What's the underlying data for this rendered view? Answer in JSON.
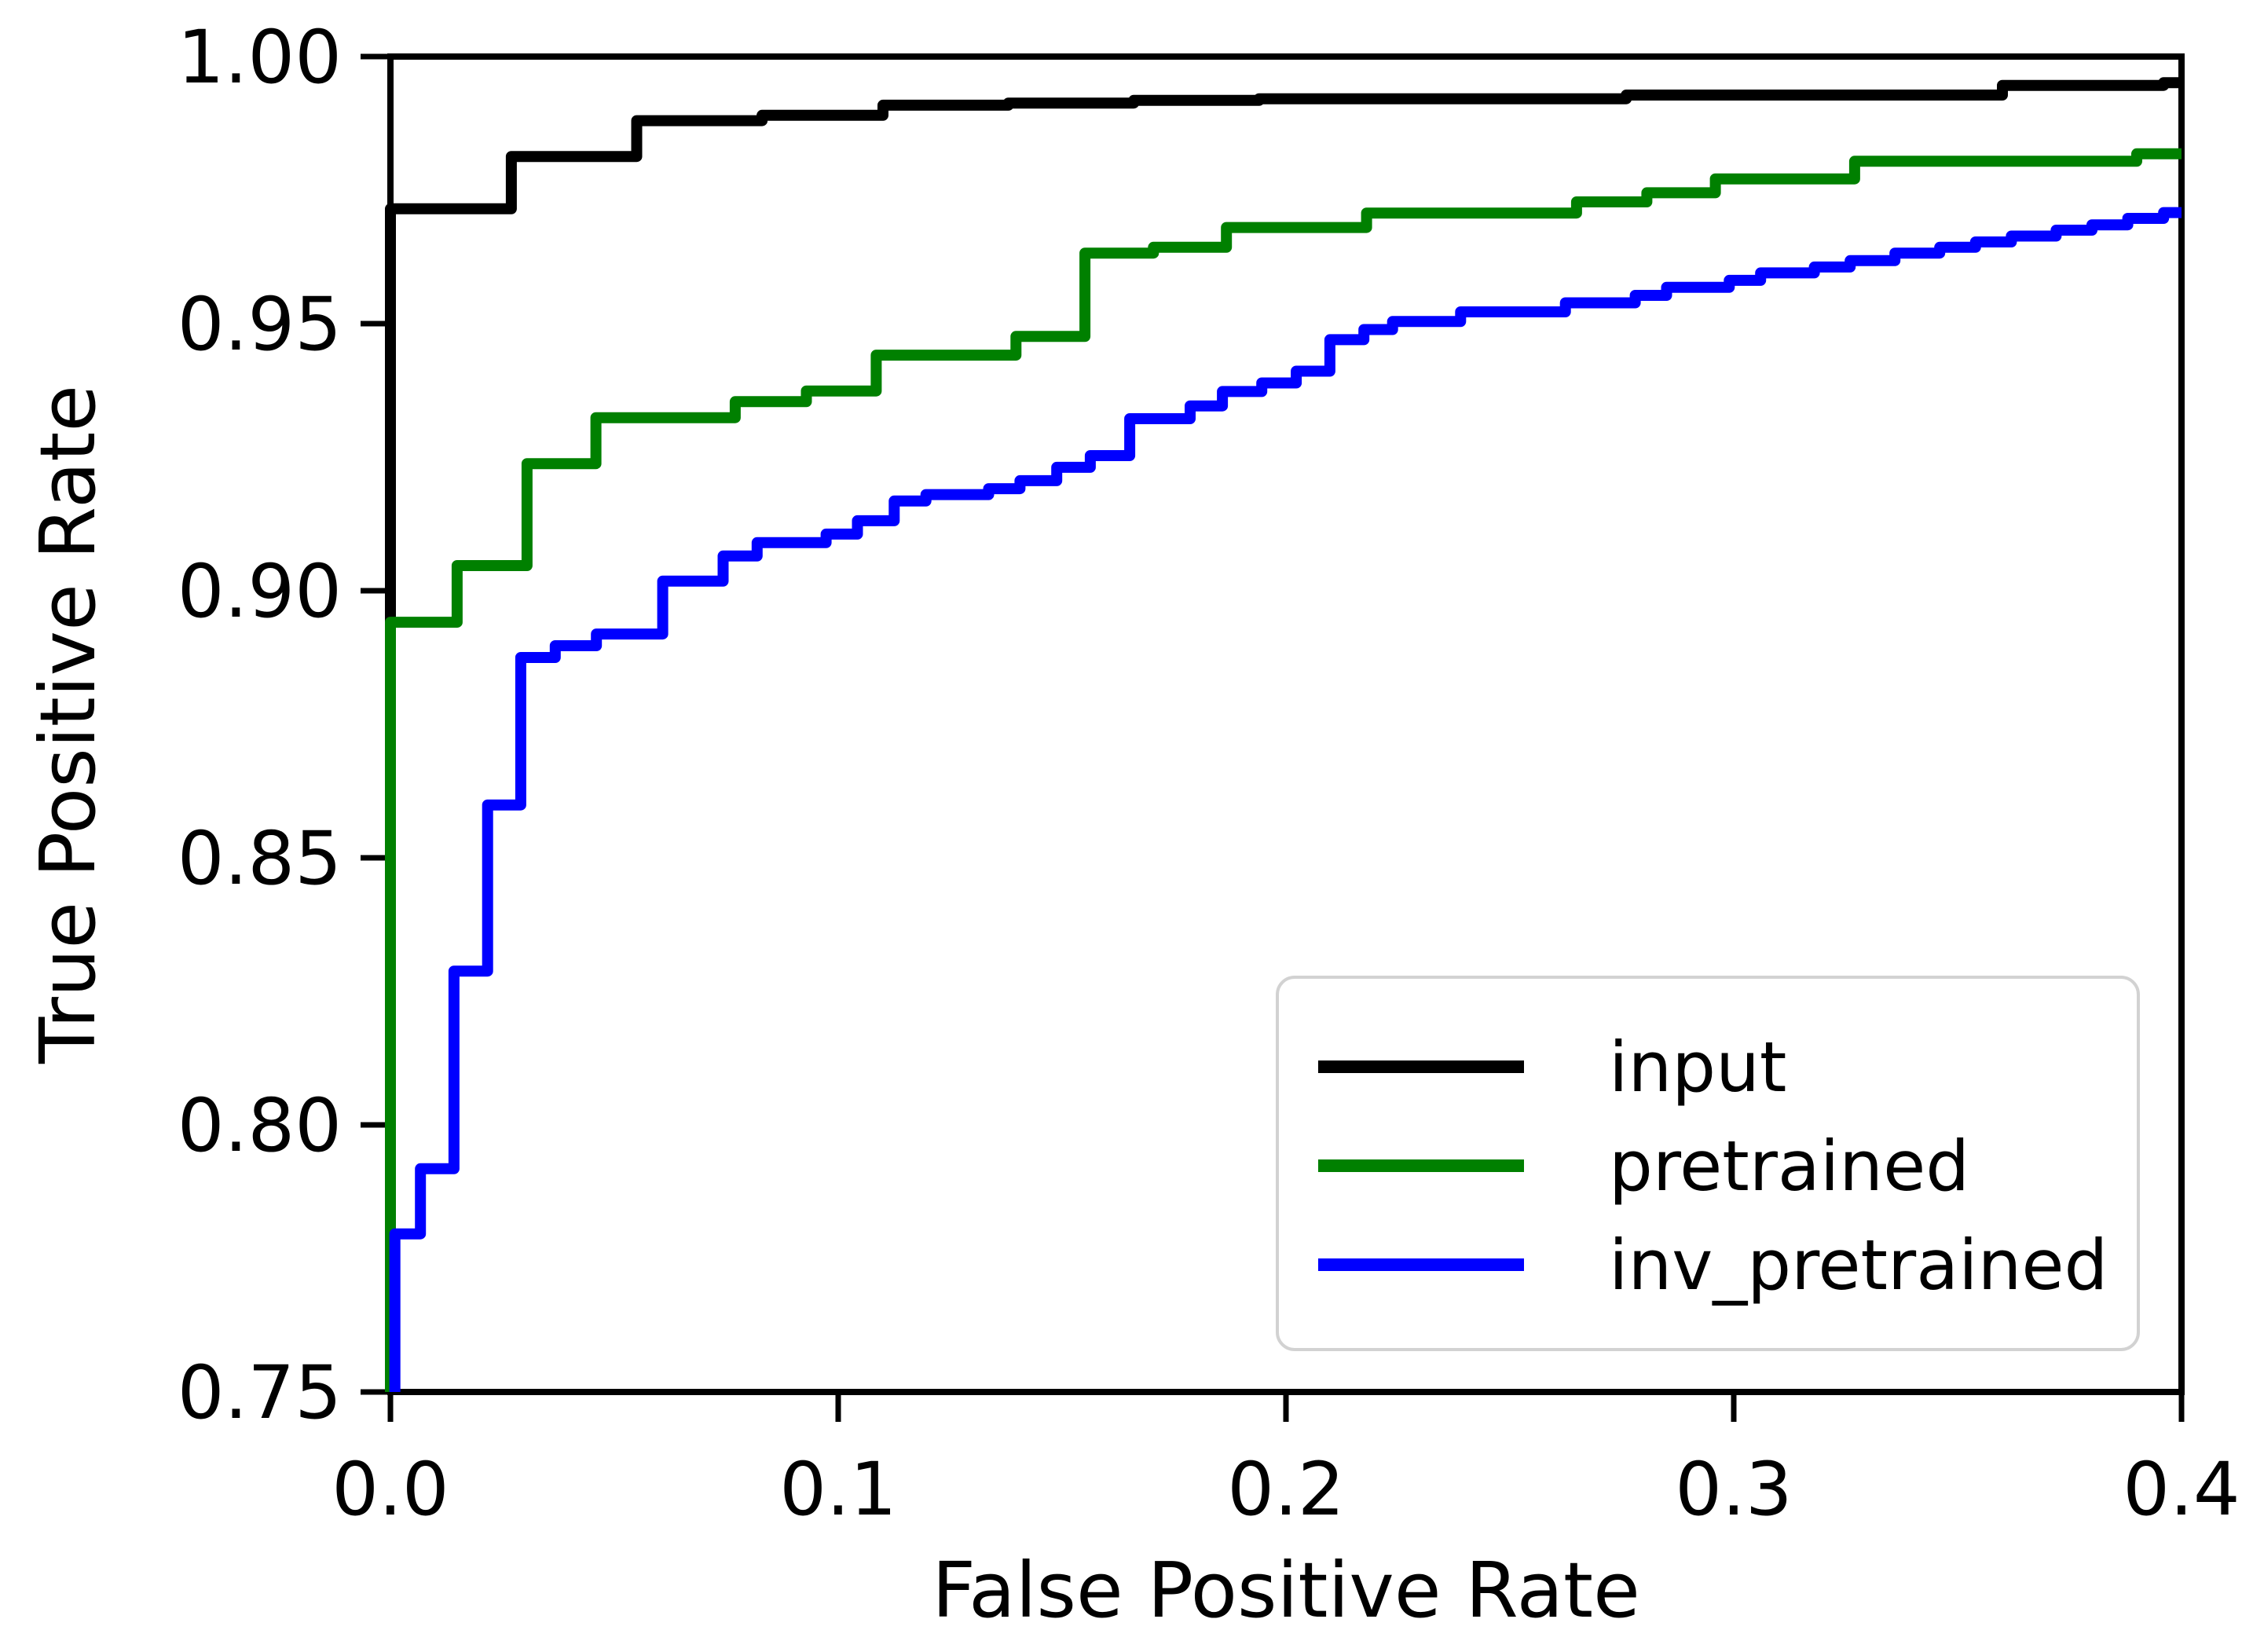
{
  "chart_data": {
    "type": "line",
    "subtype": "roc_step_curves",
    "title": "",
    "xlabel": "False Positive Rate",
    "ylabel": "True Positive Rate",
    "xlim": [
      0.0,
      0.4
    ],
    "ylim": [
      0.75,
      1.0
    ],
    "grid": false,
    "step_mode": "post",
    "baseline_tpr": 0.75,
    "x_ticks": {
      "values": [
        0.0,
        0.1,
        0.2,
        0.3,
        0.4
      ],
      "labels": [
        "0.0",
        "0.1",
        "0.2",
        "0.3",
        "0.4"
      ]
    },
    "y_ticks": {
      "values": [
        0.75,
        0.8,
        0.85,
        0.9,
        0.95,
        1.0
      ],
      "labels": [
        "0.75",
        "0.80",
        "0.85",
        "0.90",
        "0.95",
        "1.00"
      ]
    },
    "legend": {
      "position": "lower right",
      "border_color": "#d2d2d2",
      "background": "#ffffff"
    },
    "axis_color": "#000000",
    "series": [
      {
        "name": "input",
        "color": "#000000",
        "points": [
          [
            0.0,
            0.9715
          ],
          [
            0.027,
            0.9813
          ],
          [
            0.055,
            0.988
          ],
          [
            0.083,
            0.989
          ],
          [
            0.11,
            0.9909
          ],
          [
            0.138,
            0.9913
          ],
          [
            0.166,
            0.9918
          ],
          [
            0.194,
            0.9921
          ],
          [
            0.276,
            0.9928
          ],
          [
            0.36,
            0.9946
          ],
          [
            0.396,
            0.9951
          ]
        ]
      },
      {
        "name": "pretrained",
        "color": "#008000",
        "points": [
          [
            0.0,
            0.8941
          ],
          [
            0.0149,
            0.9047
          ],
          [
            0.0305,
            0.9238
          ],
          [
            0.0459,
            0.9324
          ],
          [
            0.077,
            0.9354
          ],
          [
            0.0929,
            0.9374
          ],
          [
            0.1085,
            0.9441
          ],
          [
            0.1397,
            0.9476
          ],
          [
            0.1551,
            0.9632
          ],
          [
            0.1704,
            0.9643
          ],
          [
            0.1867,
            0.968
          ],
          [
            0.218,
            0.9707
          ],
          [
            0.2649,
            0.9728
          ],
          [
            0.2806,
            0.9745
          ],
          [
            0.2959,
            0.9771
          ],
          [
            0.327,
            0.9804
          ],
          [
            0.39,
            0.9818
          ]
        ]
      },
      {
        "name": "inv_pretrained",
        "color": "#0000ff",
        "points": [
          [
            0.001,
            0.7796
          ],
          [
            0.0067,
            0.7918
          ],
          [
            0.0142,
            0.8288
          ],
          [
            0.0217,
            0.8599
          ],
          [
            0.0291,
            0.8875
          ],
          [
            0.0368,
            0.8897
          ],
          [
            0.046,
            0.8919
          ],
          [
            0.0608,
            0.9018
          ],
          [
            0.0743,
            0.9065
          ],
          [
            0.0819,
            0.909
          ],
          [
            0.0973,
            0.9106
          ],
          [
            0.1043,
            0.9131
          ],
          [
            0.1125,
            0.9168
          ],
          [
            0.1196,
            0.918
          ],
          [
            0.1336,
            0.9191
          ],
          [
            0.1406,
            0.9206
          ],
          [
            0.1488,
            0.9231
          ],
          [
            0.1563,
            0.9253
          ],
          [
            0.1651,
            0.9322
          ],
          [
            0.1786,
            0.9346
          ],
          [
            0.1858,
            0.9373
          ],
          [
            0.1946,
            0.9389
          ],
          [
            0.2023,
            0.9411
          ],
          [
            0.2098,
            0.947
          ],
          [
            0.2174,
            0.9489
          ],
          [
            0.2238,
            0.9504
          ],
          [
            0.239,
            0.9522
          ],
          [
            0.2624,
            0.9539
          ],
          [
            0.278,
            0.9553
          ],
          [
            0.285,
            0.9568
          ],
          [
            0.299,
            0.9581
          ],
          [
            0.306,
            0.9595
          ],
          [
            0.318,
            0.9606
          ],
          [
            0.326,
            0.9618
          ],
          [
            0.336,
            0.9632
          ],
          [
            0.346,
            0.9643
          ],
          [
            0.354,
            0.9653
          ],
          [
            0.362,
            0.9664
          ],
          [
            0.372,
            0.9675
          ],
          [
            0.38,
            0.9685
          ],
          [
            0.388,
            0.9697
          ],
          [
            0.396,
            0.9708
          ]
        ]
      }
    ]
  }
}
